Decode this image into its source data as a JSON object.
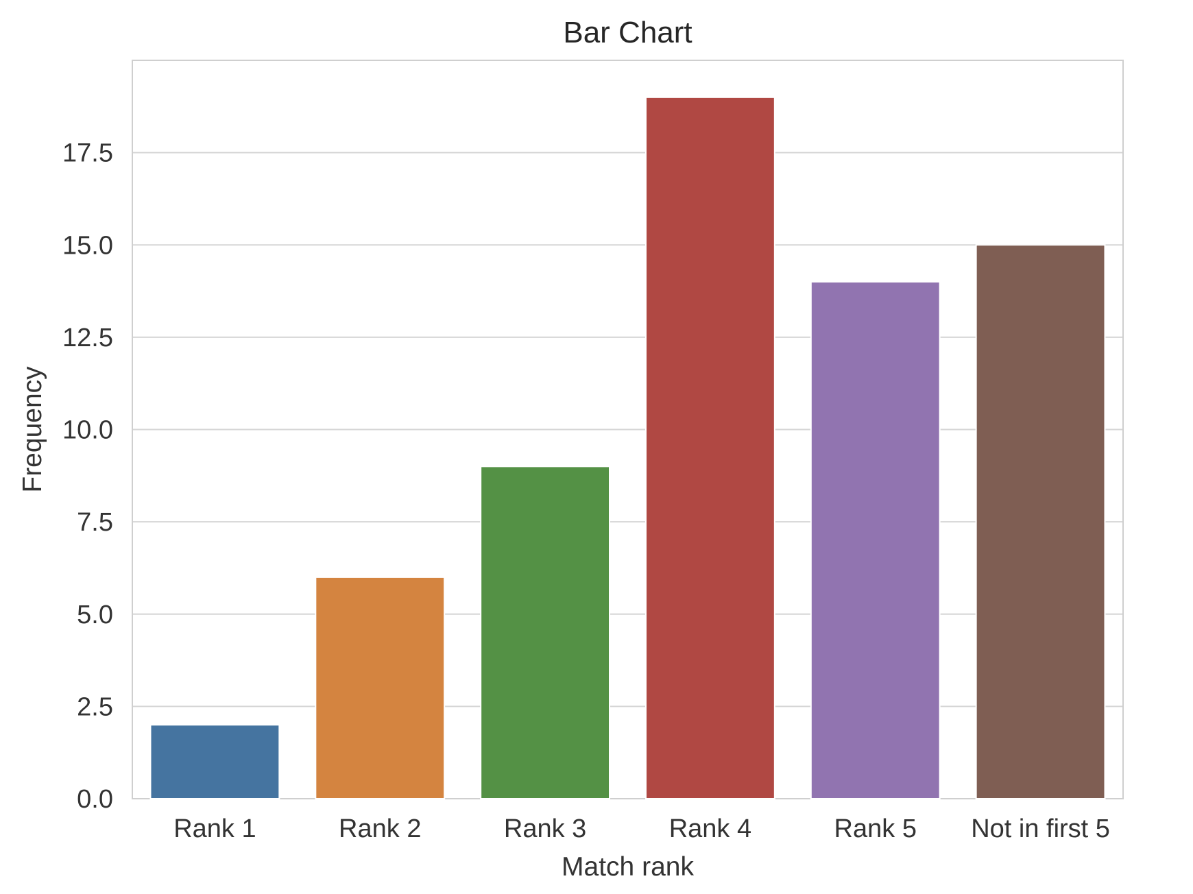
{
  "chart_data": {
    "type": "bar",
    "title": "Bar Chart",
    "xlabel": "Match rank",
    "ylabel": "Frequency",
    "categories": [
      "Rank 1",
      "Rank 2",
      "Rank 3",
      "Rank 4",
      "Rank 5",
      "Not in first 5"
    ],
    "values": [
      2,
      6,
      9,
      19,
      14,
      15
    ],
    "colors": [
      "#4574a0",
      "#d48440",
      "#549145",
      "#b04843",
      "#9174b0",
      "#7f5e53"
    ],
    "ylim": [
      0,
      20
    ],
    "yticks": [
      0.0,
      2.5,
      5.0,
      7.5,
      10.0,
      12.5,
      15.0,
      17.5
    ],
    "ytick_labels": [
      "0.0",
      "2.5",
      "5.0",
      "7.5",
      "10.0",
      "12.5",
      "15.0",
      "17.5"
    ],
    "grid": true,
    "legend": "none"
  }
}
